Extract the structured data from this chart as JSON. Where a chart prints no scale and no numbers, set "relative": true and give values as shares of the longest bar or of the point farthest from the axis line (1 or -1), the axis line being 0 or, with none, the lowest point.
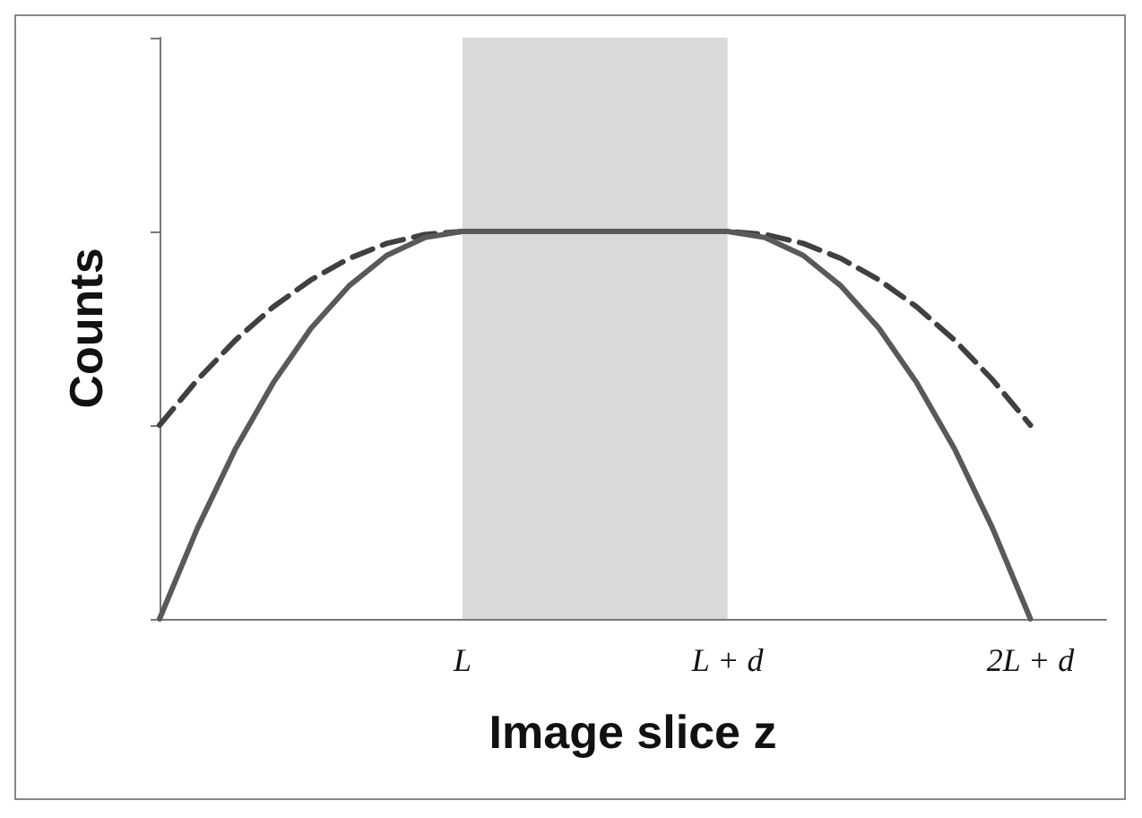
{
  "chart_data": {
    "type": "line",
    "relative": true,
    "xlabel": "Image slice z",
    "ylabel": "Counts",
    "categories": [
      null,
      null,
      null,
      null,
      null,
      null,
      null,
      null,
      "L",
      null,
      null,
      null,
      null,
      null,
      null,
      "L + d",
      null,
      null,
      null,
      null,
      null,
      null,
      null,
      "2L + d",
      null,
      null
    ],
    "series": [
      {
        "color": "#595959",
        "line_style": "solid",
        "values": [
          0,
          0.234,
          0.438,
          0.609,
          0.75,
          0.859,
          0.938,
          0.984,
          1,
          1,
          1,
          1,
          1,
          1,
          1,
          1,
          0.984,
          0.938,
          0.859,
          0.75,
          0.609,
          0.438,
          0.234,
          0,
          null,
          null
        ]
      },
      {
        "color": "#404040",
        "line_style": "dashed",
        "values": [
          0.5,
          0.617,
          0.719,
          0.805,
          0.875,
          0.93,
          0.969,
          0.992,
          1,
          1,
          1,
          1,
          1,
          1,
          1,
          1,
          0.992,
          0.969,
          0.93,
          0.875,
          0.805,
          0.719,
          0.617,
          0.5,
          null,
          null
        ]
      }
    ],
    "bands": [
      {
        "axis": "x",
        "from": "L",
        "to": "L + d",
        "color": "#d9d9d9"
      }
    ],
    "grid": false,
    "marker": "none"
  }
}
